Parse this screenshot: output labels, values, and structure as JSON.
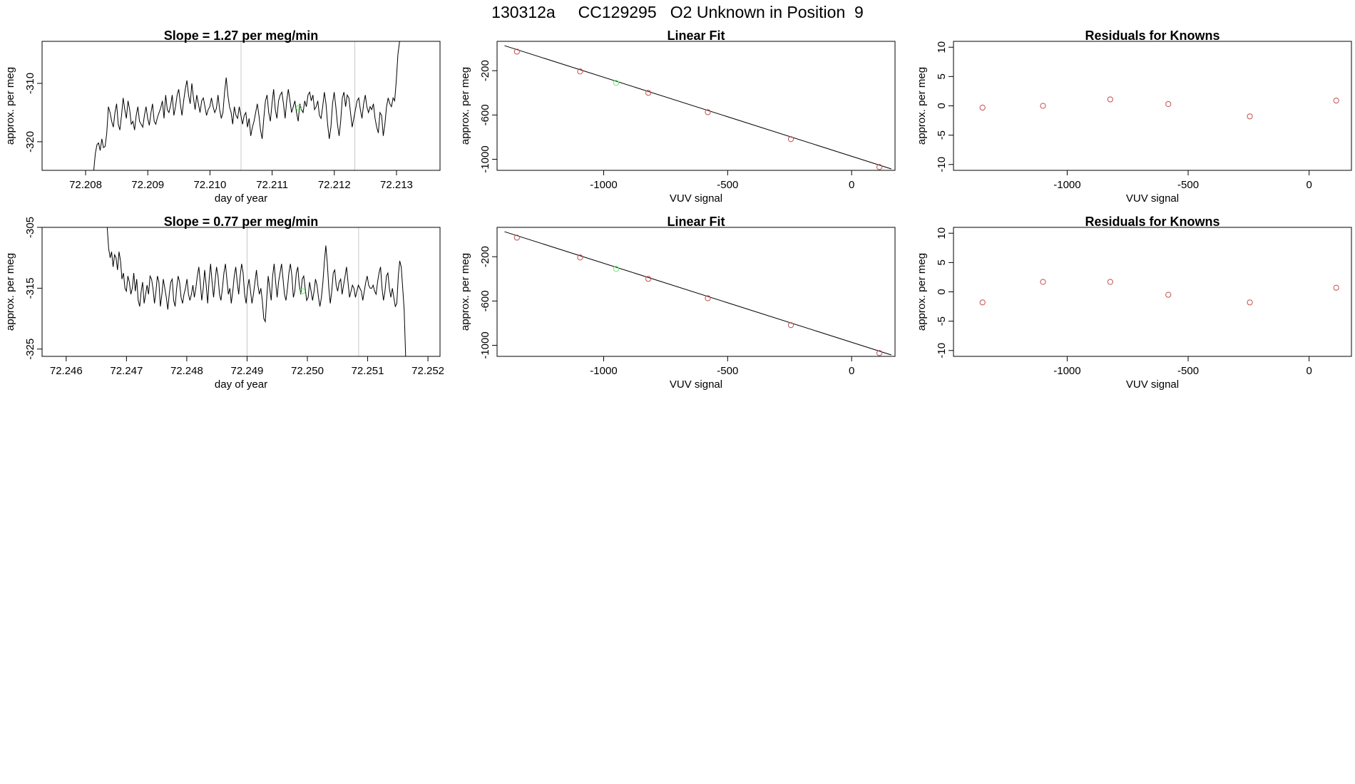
{
  "page": {
    "title": "130312a     CC129295   O2 Unknown in Position  9"
  },
  "colors": {
    "trace": "#000000",
    "known_point": "#c0504d",
    "unknown_point": "#66ee66",
    "marker_line": "#c8c8c8",
    "frame": "#000000"
  },
  "chart_data": [
    {
      "id": "ts1",
      "type": "line",
      "title": "Slope =  1.27  per meg/min",
      "xlabel": "day of year",
      "ylabel": "approx. per meg",
      "xlim": [
        72.2073,
        72.2137
      ],
      "ylim": [
        -324.9,
        -302.8
      ],
      "xticks": [
        72.208,
        72.209,
        72.21,
        72.211,
        72.212,
        72.213
      ],
      "xtick_labels": [
        "72.208",
        "72.209",
        "72.210",
        "72.211",
        "72.212",
        "72.213"
      ],
      "yticks": [
        -310,
        -320
      ],
      "ytick_labels": [
        "-310",
        "-320"
      ],
      "vlines": [
        72.2105,
        72.21233
      ],
      "unknown_point": {
        "x": 72.21143,
        "y": -314.2
      },
      "series": [
        {
          "name": "trace",
          "x_start": 72.20813,
          "x_end": 72.21305,
          "values": [
            -325.0,
            -322.0,
            -320.5,
            -320.2,
            -321.5,
            -319.5,
            -321.0,
            -320.8,
            -318.5,
            -314.0,
            -315.0,
            -316.5,
            -317.5,
            -315.0,
            -313.5,
            -317.0,
            -318.0,
            -315.5,
            -312.5,
            -314.5,
            -316.0,
            -313.0,
            -314.5,
            -317.0,
            -316.5,
            -318.0,
            -315.5,
            -314.0,
            -316.5,
            -317.0,
            -317.5,
            -315.5,
            -314.0,
            -316.0,
            -317.2,
            -315.0,
            -313.5,
            -316.5,
            -317.0,
            -315.8,
            -315.0,
            -314.2,
            -313.0,
            -316.0,
            -312.0,
            -314.5,
            -315.0,
            -313.8,
            -312.0,
            -315.5,
            -314.0,
            -312.0,
            -311.0,
            -313.5,
            -315.5,
            -313.0,
            -311.0,
            -309.5,
            -312.0,
            -313.5,
            -310.0,
            -312.5,
            -314.5,
            -312.0,
            -313.5,
            -315.0,
            -313.0,
            -312.5,
            -314.0,
            -315.5,
            -314.5,
            -314.0,
            -312.5,
            -314.0,
            -315.0,
            -314.3,
            -312.0,
            -314.5,
            -316.0,
            -315.0,
            -311.5,
            -309.0,
            -312.0,
            -314.0,
            -315.0,
            -317.0,
            -314.0,
            -315.5,
            -316.0,
            -314.0,
            -315.5,
            -317.0,
            -315.5,
            -315.0,
            -317.5,
            -316.0,
            -319.0,
            -317.5,
            -316.5,
            -315.0,
            -313.5,
            -315.5,
            -318.0,
            -319.5,
            -316.0,
            -313.0,
            -312.0,
            -315.0,
            -316.5,
            -313.5,
            -311.0,
            -314.5,
            -316.0,
            -313.0,
            -312.0,
            -311.5,
            -313.5,
            -316.0,
            -313.0,
            -311.0,
            -313.0,
            -315.0,
            -314.0,
            -313.0,
            -315.0,
            -316.5,
            -313.5,
            -314.5,
            -315.0,
            -313.0,
            -314.0,
            -312.0,
            -311.5,
            -313.0,
            -312.0,
            -314.5,
            -314.0,
            -313.0,
            -315.5,
            -316.0,
            -314.0,
            -311.5,
            -313.5,
            -317.0,
            -319.5,
            -317.5,
            -313.5,
            -311.5,
            -314.0,
            -317.0,
            -319.0,
            -316.5,
            -312.5,
            -311.5,
            -314.0,
            -312.0,
            -312.5,
            -315.0,
            -317.5,
            -316.0,
            -314.5,
            -313.0,
            -312.5,
            -314.5,
            -316.0,
            -313.5,
            -312.0,
            -314.0,
            -315.0,
            -314.0,
            -314.5,
            -313.5,
            -316.0,
            -317.5,
            -318.5,
            -315.0,
            -315.5,
            -319.0,
            -317.0,
            -314.0,
            -312.5,
            -313.5,
            -314.0,
            -312.5,
            -313.0,
            -309.5,
            -305.0,
            -302.8
          ]
        }
      ]
    },
    {
      "id": "fit1",
      "type": "scatter",
      "title": "Linear Fit",
      "xlabel": "VUV signal",
      "ylabel": "approx. per meg",
      "xlim": [
        -1430,
        175
      ],
      "ylim": [
        -1100,
        65
      ],
      "xticks": [
        -1000,
        -500,
        0
      ],
      "xtick_labels": [
        "-1000",
        "-500",
        "0"
      ],
      "yticks": [
        -200,
        -600,
        -1000
      ],
      "ytick_labels": [
        "-200",
        "-600",
        "-1000"
      ],
      "fit_line": {
        "x": [
          -1400,
          160
        ],
        "y": [
          26,
          -1087
        ]
      },
      "known_points": {
        "x": [
          -1350,
          -1095,
          -820,
          -580,
          -245,
          112
        ],
        "y": [
          -28,
          -207,
          -400,
          -575,
          -818,
          -1070
        ]
      },
      "unknown_points": {
        "x": [
          -950
        ],
        "y": [
          -310
        ]
      }
    },
    {
      "id": "res1",
      "type": "scatter",
      "title": "Residuals for Knowns",
      "xlabel": "VUV signal",
      "ylabel": "approx. per meg",
      "xlim": [
        -1470,
        175
      ],
      "ylim": [
        -11,
        11
      ],
      "xticks": [
        -1000,
        -500,
        0
      ],
      "xtick_labels": [
        "-1000",
        "-500",
        "0"
      ],
      "yticks": [
        10,
        5,
        0,
        -5,
        -10
      ],
      "ytick_labels": [
        "10",
        "5",
        "0",
        "-5",
        "-10"
      ],
      "known_points": {
        "x": [
          -1350,
          -1100,
          -822,
          -582,
          -245,
          112
        ],
        "y": [
          -0.3,
          0.0,
          1.1,
          0.3,
          -1.8,
          0.9
        ]
      }
    },
    {
      "id": "ts2",
      "type": "line",
      "title": "Slope =  0.77  per meg/min",
      "xlabel": "day of year",
      "ylabel": "approx. per meg",
      "xlim": [
        72.2456,
        72.2522
      ],
      "ylim": [
        -326.2,
        -305.0
      ],
      "xticks": [
        72.246,
        72.247,
        72.248,
        72.249,
        72.25,
        72.251,
        72.252
      ],
      "xtick_labels": [
        "72.246",
        "72.247",
        "72.248",
        "72.249",
        "72.250",
        "72.251",
        "72.252"
      ],
      "yticks": [
        -305,
        -315,
        -325
      ],
      "ytick_labels": [
        "-305",
        "-315",
        "-325"
      ],
      "vlines": [
        72.249,
        72.25085
      ],
      "unknown_point": {
        "x": 72.24992,
        "y": -315.5
      },
      "series": [
        {
          "name": "trace",
          "x_start": 72.24668,
          "x_end": 72.25163,
          "values": [
            -305.0,
            -308.5,
            -310.0,
            -309.0,
            -311.5,
            -309.5,
            -310.0,
            -312.0,
            -309.0,
            -310.5,
            -313.5,
            -312.5,
            -315.0,
            -315.5,
            -313.0,
            -314.0,
            -316.0,
            -315.0,
            -312.5,
            -315.5,
            -313.5,
            -317.0,
            -318.0,
            -315.5,
            -314.0,
            -317.5,
            -316.0,
            -314.5,
            -316.0,
            -313.0,
            -313.5,
            -315.0,
            -317.5,
            -315.5,
            -313.0,
            -314.0,
            -318.0,
            -316.0,
            -313.5,
            -315.0,
            -316.5,
            -318.5,
            -316.0,
            -314.0,
            -313.5,
            -317.0,
            -318.0,
            -315.0,
            -313.0,
            -314.0,
            -316.5,
            -317.5,
            -316.0,
            -315.0,
            -313.5,
            -316.0,
            -317.0,
            -316.0,
            -314.5,
            -316.5,
            -315.0,
            -313.0,
            -311.5,
            -314.0,
            -317.0,
            -315.0,
            -312.0,
            -314.5,
            -317.5,
            -313.5,
            -311.0,
            -314.0,
            -316.5,
            -314.0,
            -311.5,
            -313.0,
            -316.0,
            -317.0,
            -315.0,
            -312.5,
            -311.0,
            -313.5,
            -316.0,
            -315.0,
            -317.5,
            -315.5,
            -313.0,
            -311.5,
            -314.0,
            -316.0,
            -313.0,
            -311.0,
            -312.5,
            -316.0,
            -317.5,
            -315.0,
            -313.5,
            -315.5,
            -317.5,
            -316.0,
            -314.0,
            -312.0,
            -314.5,
            -316.0,
            -315.0,
            -317.0,
            -320.0,
            -320.5,
            -316.5,
            -313.0,
            -315.0,
            -317.0,
            -313.0,
            -311.0,
            -314.0,
            -316.5,
            -314.0,
            -312.5,
            -311.0,
            -313.5,
            -316.0,
            -317.0,
            -315.0,
            -312.5,
            -311.0,
            -313.0,
            -316.5,
            -315.5,
            -312.5,
            -311.5,
            -314.5,
            -316.0,
            -313.5,
            -313.0,
            -315.0,
            -317.0,
            -316.5,
            -314.0,
            -315.5,
            -317.0,
            -315.5,
            -313.5,
            -314.5,
            -316.5,
            -318.0,
            -316.5,
            -314.0,
            -310.5,
            -308.0,
            -311.0,
            -315.0,
            -317.5,
            -315.5,
            -312.5,
            -312.0,
            -314.5,
            -315.5,
            -314.0,
            -313.5,
            -316.0,
            -314.5,
            -313.0,
            -311.5,
            -314.0,
            -316.5,
            -315.5,
            -314.5,
            -315.0,
            -316.5,
            -315.5,
            -314.5,
            -315.0,
            -315.5,
            -317.0,
            -315.5,
            -314.0,
            -313.0,
            -314.5,
            -315.0,
            -315.0,
            -314.5,
            -315.5,
            -316.0,
            -314.0,
            -312.5,
            -311.5,
            -315.0,
            -317.0,
            -315.5,
            -313.0,
            -312.5,
            -315.0,
            -316.5,
            -315.0,
            -316.5,
            -318.0,
            -317.5,
            -313.0,
            -310.5,
            -311.5,
            -315.0,
            -318.5,
            -326.2
          ]
        }
      ]
    },
    {
      "id": "fit2",
      "type": "scatter",
      "title": "Linear Fit",
      "xlabel": "VUV signal",
      "ylabel": "approx. per meg",
      "xlim": [
        -1430,
        175
      ],
      "ylim": [
        -1100,
        65
      ],
      "xticks": [
        -1000,
        -500,
        0
      ],
      "xtick_labels": [
        "-1000",
        "-500",
        "0"
      ],
      "yticks": [
        -200,
        -600,
        -1000
      ],
      "ytick_labels": [
        "-200",
        "-600",
        "-1000"
      ],
      "fit_line": {
        "x": [
          -1400,
          160
        ],
        "y": [
          26,
          -1087
        ]
      },
      "known_points": {
        "x": [
          -1350,
          -1095,
          -820,
          -580,
          -245,
          112
        ],
        "y": [
          -28,
          -207,
          -400,
          -575,
          -818,
          -1070
        ]
      },
      "unknown_points": {
        "x": [
          -950
        ],
        "y": [
          -310
        ]
      }
    },
    {
      "id": "res2",
      "type": "scatter",
      "title": "Residuals for Knowns",
      "xlabel": "VUV signal",
      "ylabel": "approx. per meg",
      "xlim": [
        -1470,
        175
      ],
      "ylim": [
        -11,
        11
      ],
      "xticks": [
        -1000,
        -500,
        0
      ],
      "xtick_labels": [
        "-1000",
        "-500",
        "0"
      ],
      "yticks": [
        10,
        5,
        0,
        -5,
        -10
      ],
      "ytick_labels": [
        "10",
        "5",
        "0",
        "-5",
        "-10"
      ],
      "known_points": {
        "x": [
          -1350,
          -1100,
          -822,
          -582,
          -245,
          112
        ],
        "y": [
          -1.8,
          1.7,
          1.7,
          -0.5,
          -1.8,
          0.7
        ]
      }
    }
  ]
}
